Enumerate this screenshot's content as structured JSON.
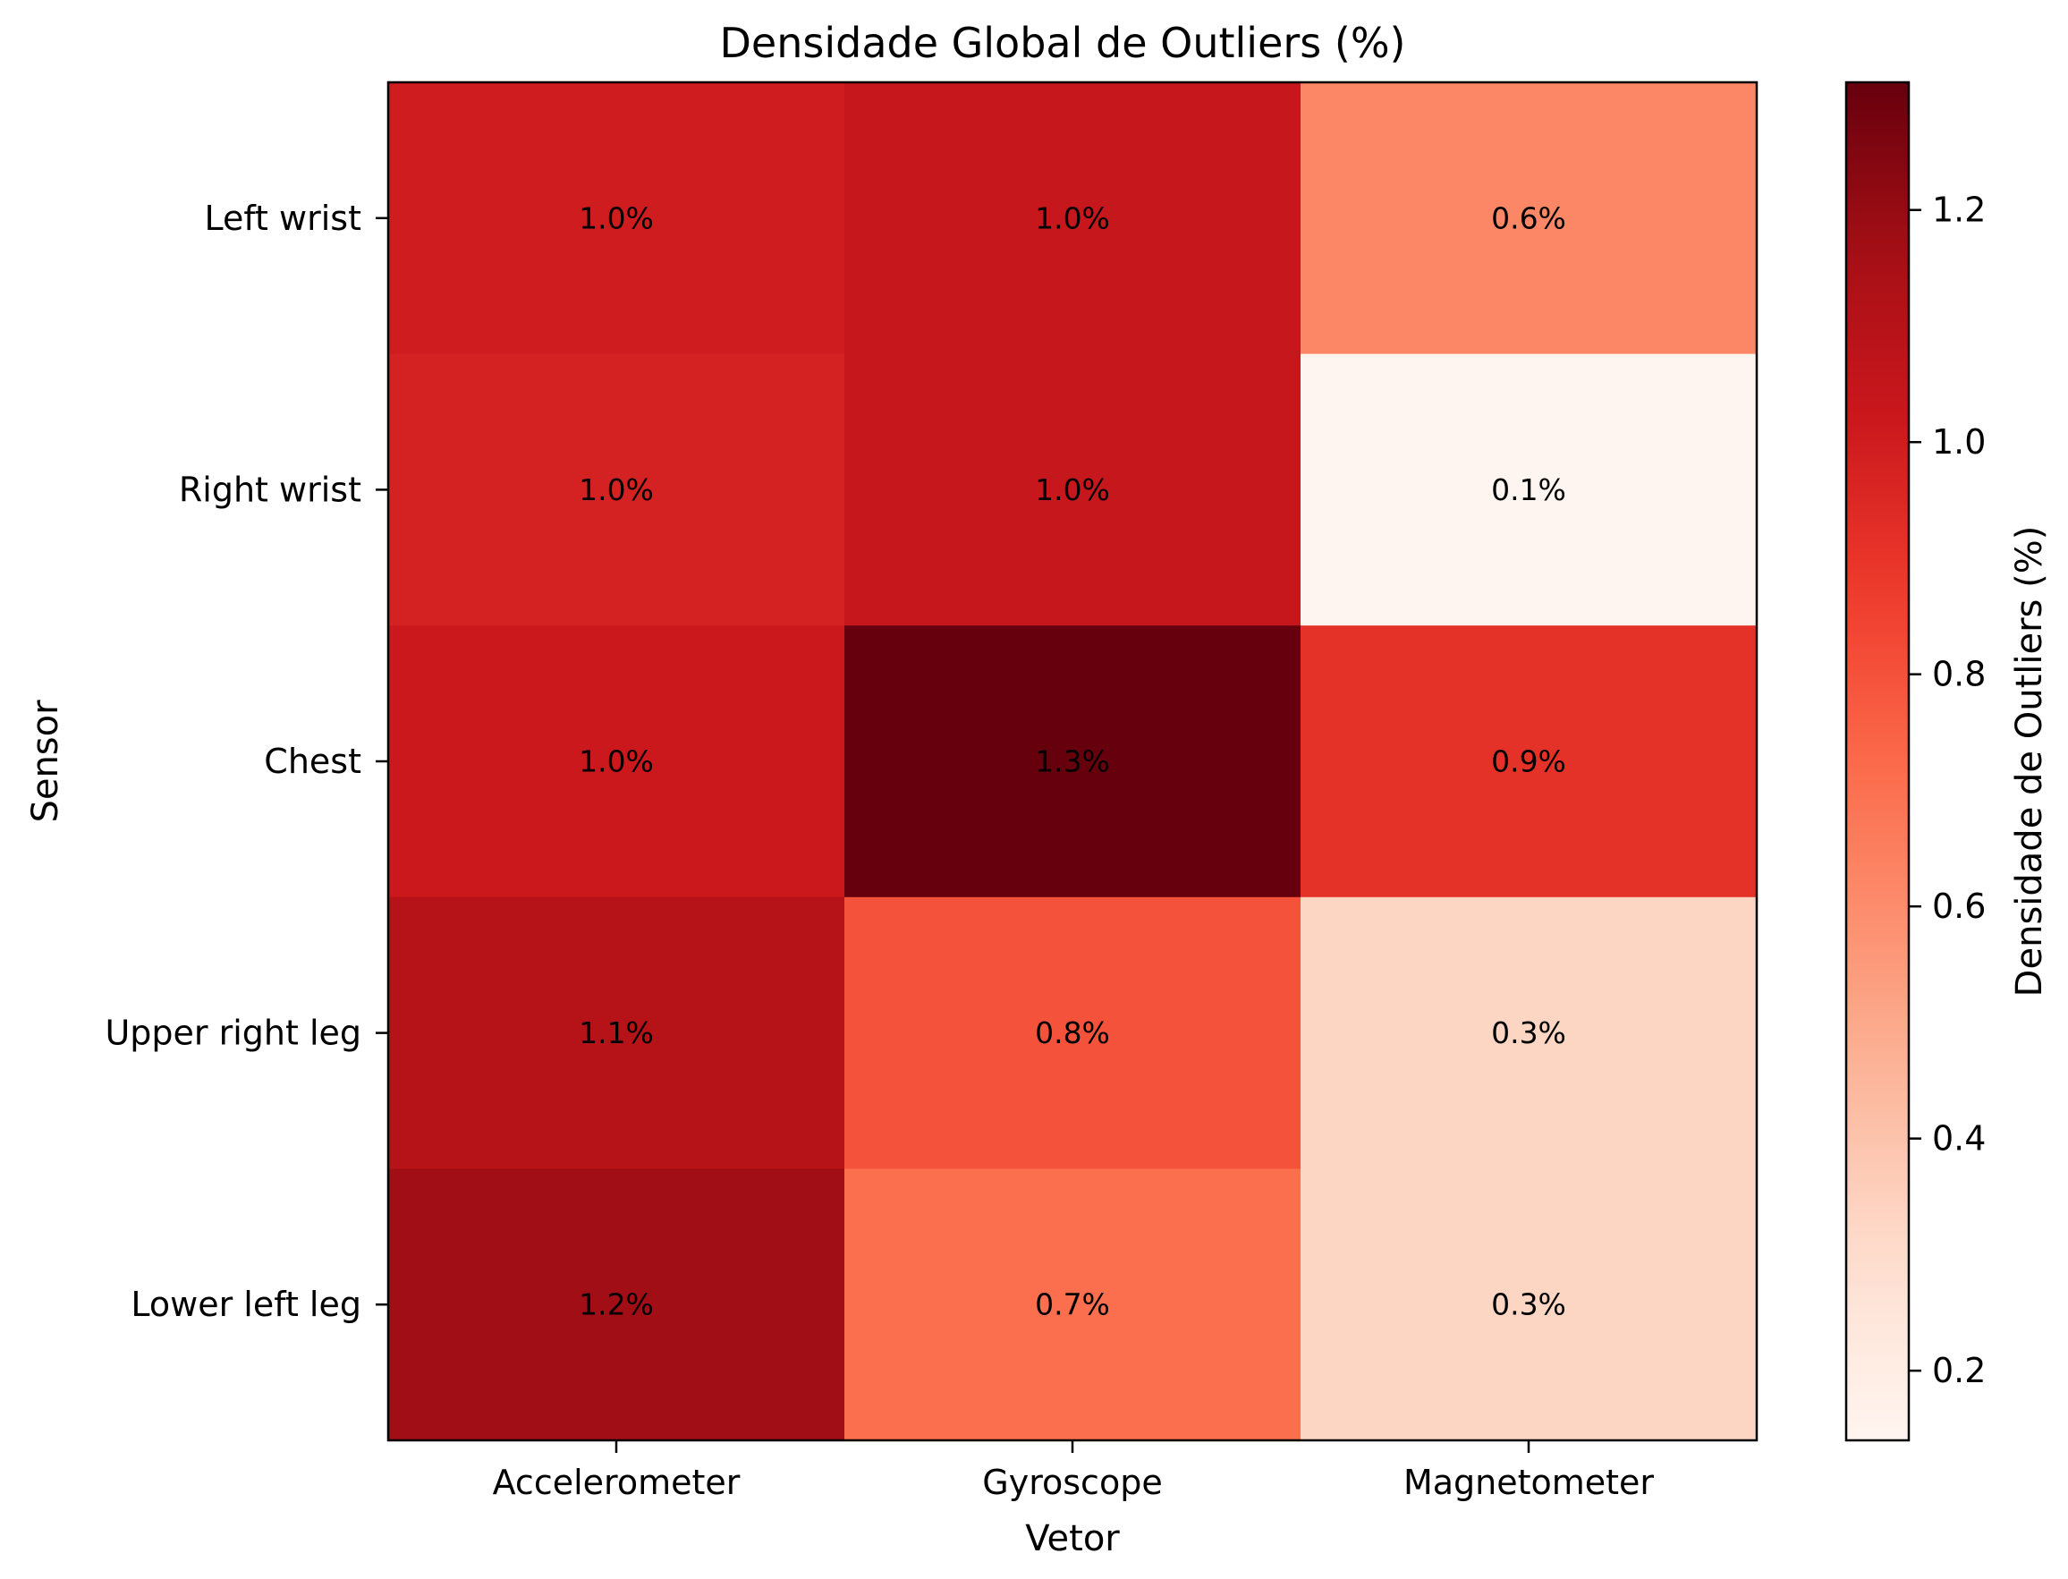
{
  "chart_data": {
    "type": "heatmap",
    "title": "Densidade Global de Outliers (%)",
    "xlabel": "Vetor",
    "ylabel": "Sensor",
    "x_categories": [
      "Accelerometer",
      "Gyroscope",
      "Magnetometer"
    ],
    "y_categories": [
      "Left wrist",
      "Right wrist",
      "Chest",
      "Upper right leg",
      "Lower left leg"
    ],
    "values": [
      [
        1.0,
        1.04,
        0.62
      ],
      [
        0.98,
        1.04,
        0.14
      ],
      [
        1.02,
        1.31,
        0.91
      ],
      [
        1.1,
        0.8,
        0.33
      ],
      [
        1.17,
        0.71,
        0.33
      ]
    ],
    "cell_labels": [
      [
        "1.0%",
        "1.0%",
        "0.6%"
      ],
      [
        "1.0%",
        "1.0%",
        "0.1%"
      ],
      [
        "1.0%",
        "1.3%",
        "0.9%"
      ],
      [
        "1.1%",
        "0.8%",
        "0.3%"
      ],
      [
        "1.2%",
        "0.7%",
        "0.3%"
      ]
    ],
    "colormap": "Reds",
    "colorbar": {
      "label": "Densidade de Outliers (%)",
      "range": [
        0.14,
        1.31
      ],
      "ticks": [
        0.2,
        0.4,
        0.6,
        0.8,
        1.0,
        1.2
      ],
      "tick_labels": [
        "0.2",
        "0.4",
        "0.6",
        "0.8",
        "1.0",
        "1.2"
      ]
    },
    "grid": false
  }
}
